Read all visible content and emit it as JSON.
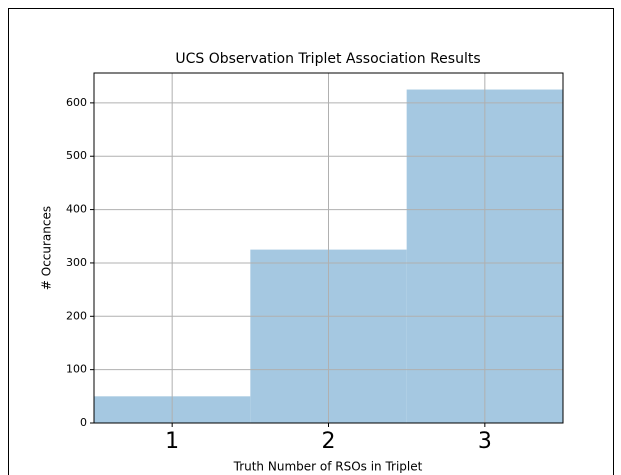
{
  "chart_data": {
    "type": "histogram",
    "title": "UCS Observation Triplet Association Results",
    "xlabel": "Truth Number of RSOs in Triplet",
    "ylabel": "# Occurances",
    "bins": [
      0.5,
      1.5,
      2.5,
      3.5
    ],
    "counts": [
      50,
      325,
      625
    ],
    "color": "#a5c8e1",
    "xlim": [
      0.5,
      3.5
    ],
    "xticks": [
      1,
      2,
      3
    ],
    "ylim": [
      0,
      656
    ],
    "yticks": [
      0,
      100,
      200,
      300,
      400,
      500,
      600
    ],
    "grid": true
  }
}
